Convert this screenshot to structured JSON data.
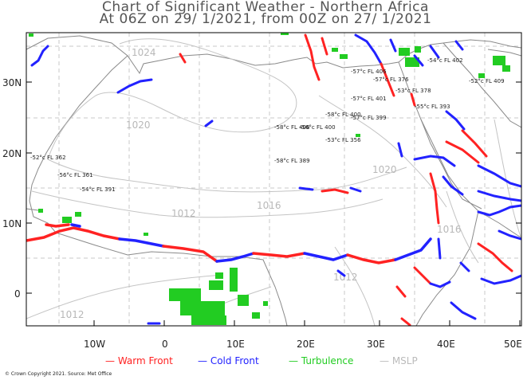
{
  "title_line1": "Chart of Significant Weather - Northern Africa",
  "title_line2": "At 06Z on 29/ 1/2021, from 00Z on 27/ 1/2021",
  "axes": {
    "lat_labels": [
      "30N",
      "20N",
      "10N",
      "0"
    ],
    "lon_labels": [
      "10W",
      "0",
      "10E",
      "20E",
      "30E",
      "40E",
      "50E"
    ]
  },
  "isobar_labels": [
    "1024",
    "1020",
    "1020",
    "1016",
    "1012",
    "1012",
    "1012",
    "1016"
  ],
  "cloud_labels": [
    "-57°c FL 406",
    "-57°c FL 376",
    "-53°c FL 378",
    "-57°c FL 401",
    "-54°c FL 402",
    "-58°c FL 400",
    "-55°c FL 393",
    "-57°c FL 399",
    "-58°c FL 406",
    "-56°c FL 400",
    "-52°c FL 409",
    "-58°c FL 389",
    "-53°c FL 356",
    "-52°c FL 362",
    "-56°c FL 361",
    "-54°c FL 391"
  ],
  "legend": {
    "warm_front": "Warm Front",
    "cold_front": "Cold Front",
    "turbulence": "Turbulence",
    "mslp": "MSLP",
    "colors": {
      "warm": "#ff2222",
      "cold": "#2222ff",
      "turb": "#22cc22",
      "mslp": "#bbbbbb"
    }
  },
  "copyright": "© Crown Copyright 2021. Source: Met Office"
}
